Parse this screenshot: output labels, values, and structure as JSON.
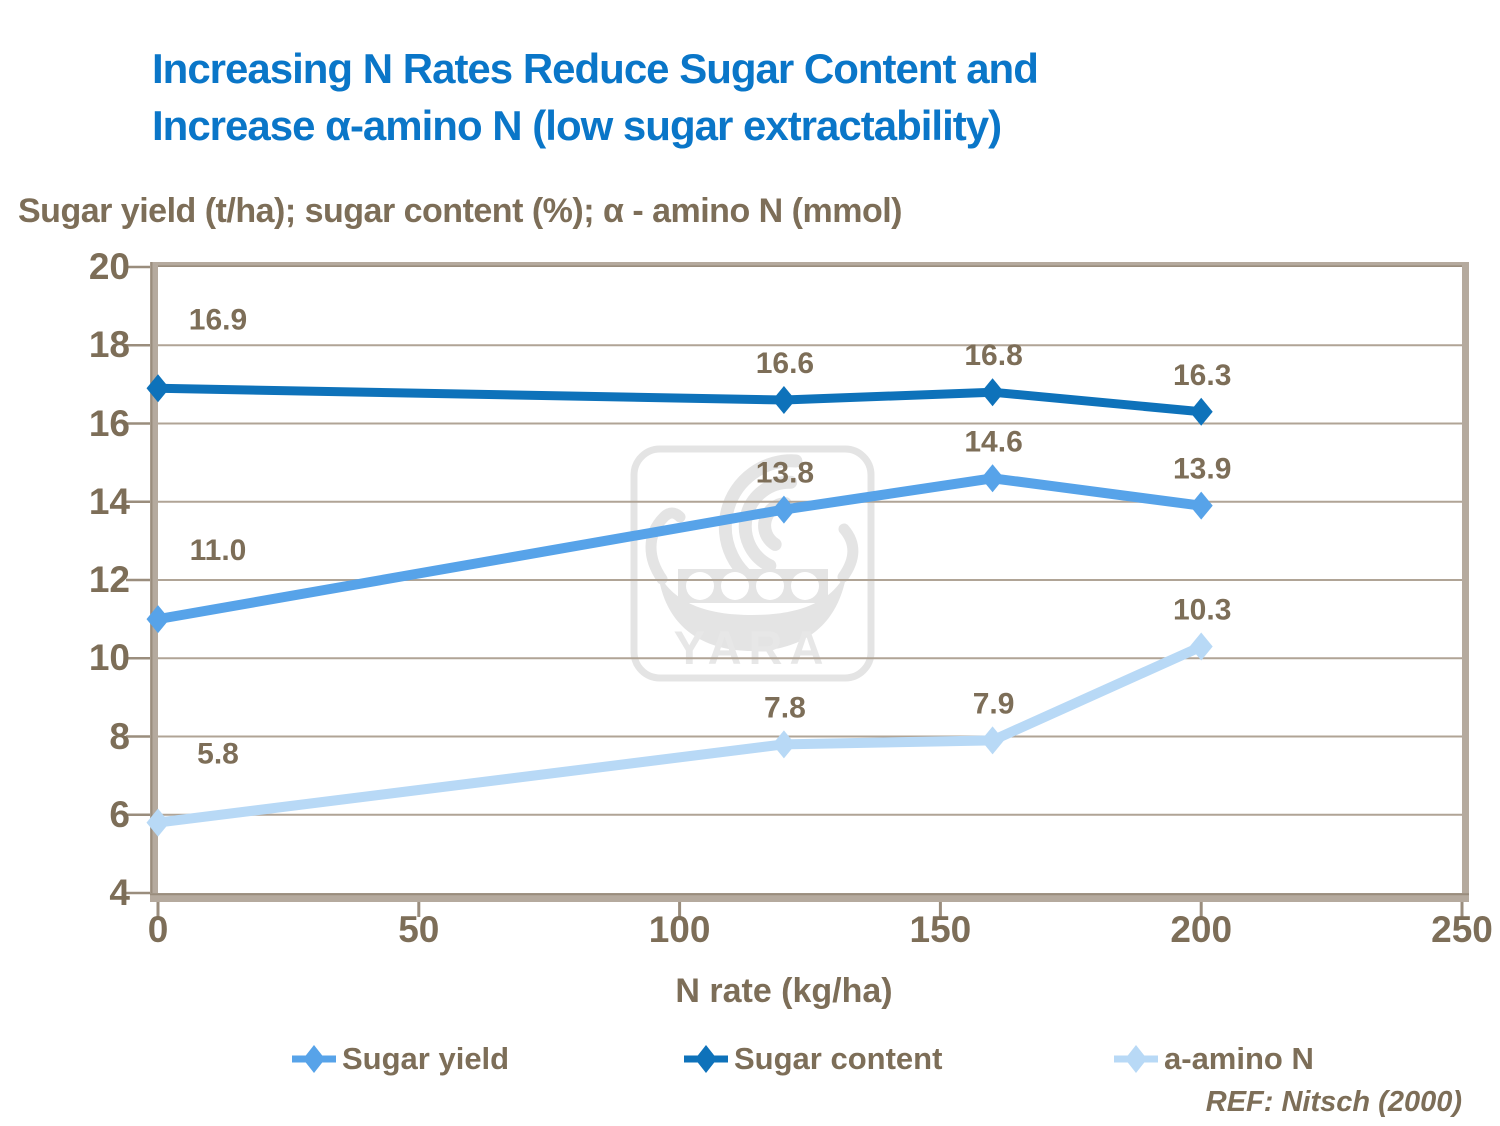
{
  "title": {
    "line1": "Increasing N Rates Reduce Sugar Content and",
    "line2": "Increase α-amino N (low sugar extractability)"
  },
  "subtitle": "Sugar yield (t/ha); sugar content (%); α - amino N (mmol)",
  "reference": "REF: Nitsch (2000)",
  "watermark": {
    "text": "YARA"
  },
  "colors": {
    "title_blue": "#0a76c8",
    "text_brown": "#7d6e58",
    "axis": "#b5aa9e",
    "axis_dark": "#9a8d7d",
    "tick": "#9a8d7d",
    "grid": "#b0a496",
    "watermark_gray": "#e4e4e4"
  },
  "chart_data": {
    "type": "line",
    "title": "Increasing N Rates Reduce Sugar Content and Increase α-amino N (low sugar extractability)",
    "xlabel": "N rate (kg/ha)",
    "ylabel": "Sugar yield (t/ha); sugar content (%); α - amino N (mmol)",
    "x": [
      0,
      120,
      160,
      200
    ],
    "xlim": [
      0,
      250
    ],
    "ylim": [
      4,
      20
    ],
    "x_ticks": [
      0,
      50,
      100,
      150,
      200,
      250
    ],
    "y_ticks": [
      4,
      6,
      8,
      10,
      12,
      14,
      16,
      18,
      20
    ],
    "grid": "horizontal",
    "legend_position": "bottom",
    "series": [
      {
        "id": "sugar-content",
        "name": "Sugar content",
        "values": [
          16.9,
          16.6,
          16.8,
          16.3
        ],
        "labels": [
          "16.9",
          "16.6",
          "16.8",
          "16.3"
        ],
        "color": "#0e72ba",
        "width": 9
      },
      {
        "id": "sugar-yield",
        "name": "Sugar yield",
        "values": [
          11.0,
          13.8,
          14.6,
          13.9
        ],
        "labels": [
          "11.0",
          "13.8",
          "14.6",
          "13.9"
        ],
        "color": "#57a3e9",
        "width": 10
      },
      {
        "id": "a-amino-n",
        "name": "a-amino N",
        "values": [
          5.8,
          7.8,
          7.9,
          10.3
        ],
        "labels": [
          "5.8",
          "7.8",
          "7.9",
          "10.3"
        ],
        "color": "#b8d9f6",
        "width": 10
      }
    ],
    "legend": [
      "Sugar yield",
      "Sugar content",
      "a-amino N"
    ]
  }
}
